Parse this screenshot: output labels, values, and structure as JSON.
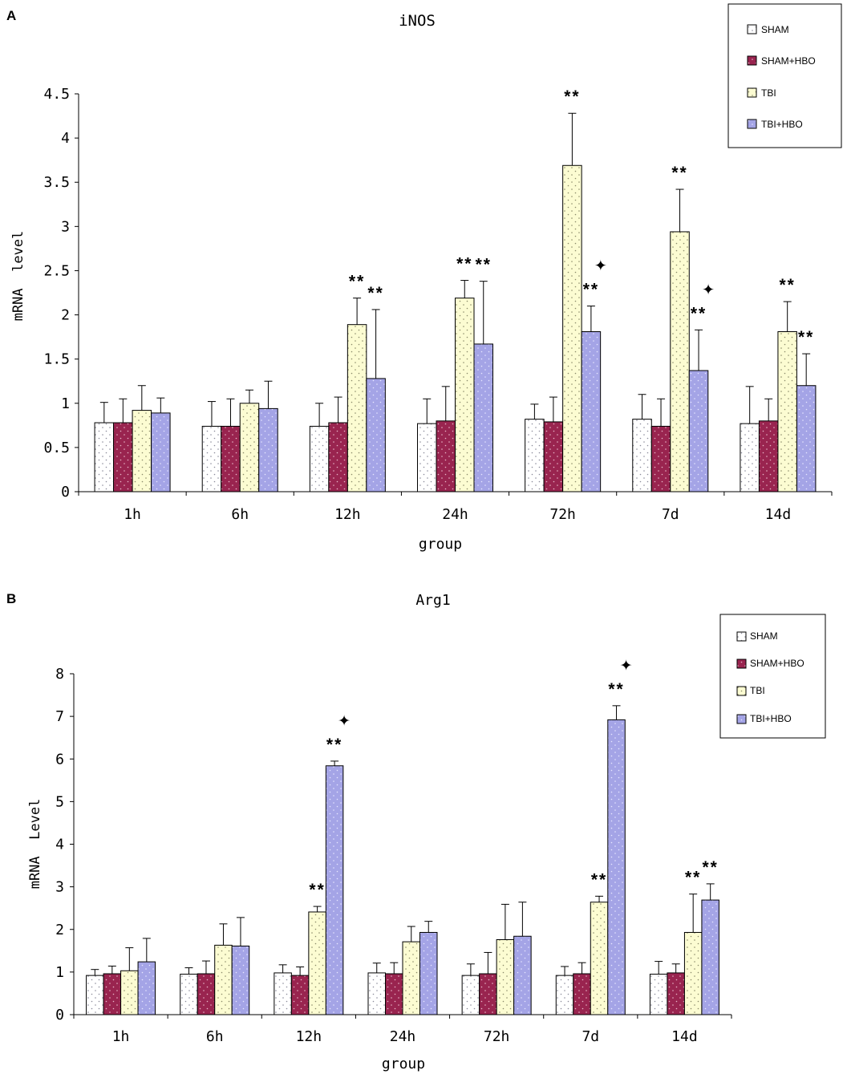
{
  "panels": [
    {
      "panel_label": "A",
      "legend_labels": [
        "SHAM",
        "SHAM+HBO",
        "TBI",
        "TBI+HBO"
      ]
    },
    {
      "panel_label": "B",
      "legend_labels": [
        "SHAM",
        "SHAM+HBO",
        "TBI",
        "TBI+HBO"
      ]
    }
  ],
  "colors": {
    "SHAM": "#ffffff",
    "SHAM+HBO": "#99244f",
    "TBI": "#fcfcd2",
    "TBI+HBO": "#a4a4e6"
  },
  "chart_data": [
    {
      "type": "bar",
      "title": "iNOS",
      "xlabel": "group",
      "ylabel": "mRNA  level",
      "ylim": [
        0,
        4.5
      ],
      "yticks": [
        "0",
        "0.5",
        "1",
        "1.5",
        "2",
        "2.5",
        "3",
        "3.5",
        "4",
        "4.5"
      ],
      "categories": [
        "1h",
        "6h",
        "12h",
        "24h",
        "72h",
        "7d",
        "14d"
      ],
      "series": [
        {
          "name": "SHAM",
          "values": [
            0.78,
            0.74,
            0.74,
            0.77,
            0.82,
            0.82,
            0.77
          ],
          "errors": [
            0.23,
            0.28,
            0.26,
            0.28,
            0.17,
            0.28,
            0.42
          ]
        },
        {
          "name": "SHAM+HBO",
          "values": [
            0.78,
            0.74,
            0.78,
            0.8,
            0.79,
            0.74,
            0.8
          ],
          "errors": [
            0.27,
            0.31,
            0.29,
            0.39,
            0.28,
            0.31,
            0.25
          ]
        },
        {
          "name": "TBI",
          "values": [
            0.92,
            1.0,
            1.89,
            2.19,
            3.69,
            2.94,
            1.81
          ],
          "errors": [
            0.28,
            0.15,
            0.3,
            0.2,
            0.59,
            0.48,
            0.34
          ]
        },
        {
          "name": "TBI+HBO",
          "values": [
            0.89,
            0.94,
            1.28,
            1.67,
            1.81,
            1.37,
            1.2
          ],
          "errors": [
            0.17,
            0.31,
            0.78,
            0.71,
            0.29,
            0.46,
            0.36
          ]
        }
      ],
      "annotations": [
        {
          "category": "12h",
          "series": "TBI",
          "text": "**"
        },
        {
          "category": "12h",
          "series": "TBI+HBO",
          "text": "**"
        },
        {
          "category": "24h",
          "series": "TBI",
          "text": "**"
        },
        {
          "category": "24h",
          "series": "TBI+HBO",
          "text": "**"
        },
        {
          "category": "72h",
          "series": "TBI",
          "text": "**"
        },
        {
          "category": "72h",
          "series": "TBI+HBO",
          "text": "**",
          "marker": "✦"
        },
        {
          "category": "7d",
          "series": "TBI",
          "text": "**"
        },
        {
          "category": "7d",
          "series": "TBI+HBO",
          "text": "**",
          "marker": "✦"
        },
        {
          "category": "14d",
          "series": "TBI",
          "text": "**"
        },
        {
          "category": "14d",
          "series": "TBI+HBO",
          "text": "**"
        }
      ]
    },
    {
      "type": "bar",
      "title": "Arg1",
      "xlabel": "group",
      "ylabel": "mRNA  Level",
      "ylim": [
        0,
        8
      ],
      "yticks": [
        "0",
        "1",
        "2",
        "3",
        "4",
        "5",
        "6",
        "7",
        "8"
      ],
      "categories": [
        "1h",
        "6h",
        "12h",
        "24h",
        "72h",
        "7d",
        "14d"
      ],
      "series": [
        {
          "name": "SHAM",
          "values": [
            0.92,
            0.95,
            0.98,
            0.98,
            0.92,
            0.92,
            0.95
          ],
          "errors": [
            0.14,
            0.15,
            0.19,
            0.23,
            0.27,
            0.21,
            0.3
          ]
        },
        {
          "name": "SHAM+HBO",
          "values": [
            0.96,
            0.96,
            0.92,
            0.96,
            0.96,
            0.96,
            0.98
          ],
          "errors": [
            0.18,
            0.3,
            0.2,
            0.26,
            0.5,
            0.26,
            0.21
          ]
        },
        {
          "name": "TBI",
          "values": [
            1.03,
            1.63,
            2.41,
            1.71,
            1.76,
            2.64,
            1.93
          ],
          "errors": [
            0.54,
            0.5,
            0.13,
            0.36,
            0.83,
            0.14,
            0.9
          ]
        },
        {
          "name": "TBI+HBO",
          "values": [
            1.24,
            1.61,
            5.84,
            1.93,
            1.84,
            6.92,
            2.69
          ],
          "errors": [
            0.55,
            0.67,
            0.11,
            0.26,
            0.8,
            0.33,
            0.38
          ]
        }
      ],
      "annotations": [
        {
          "category": "12h",
          "series": "TBI",
          "text": "**"
        },
        {
          "category": "12h",
          "series": "TBI+HBO",
          "text": "**",
          "marker": "✦"
        },
        {
          "category": "7d",
          "series": "TBI",
          "text": "**"
        },
        {
          "category": "7d",
          "series": "TBI+HBO",
          "text": "**",
          "marker": "✦"
        },
        {
          "category": "14d",
          "series": "TBI",
          "text": "**"
        },
        {
          "category": "14d",
          "series": "TBI+HBO",
          "text": "**"
        }
      ]
    }
  ]
}
